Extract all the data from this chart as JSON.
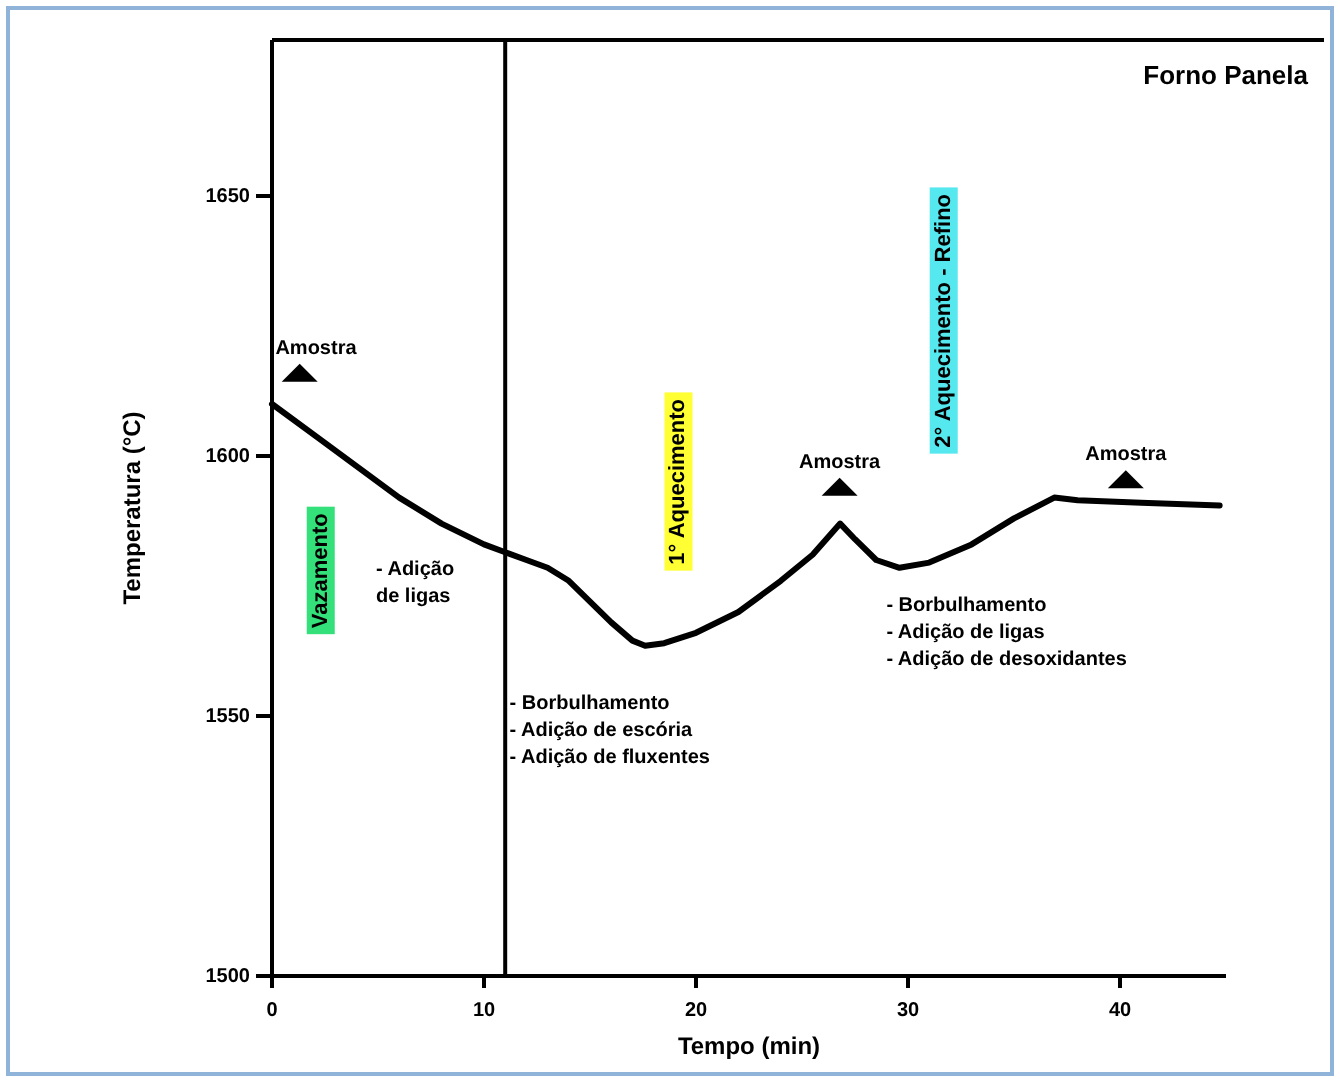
{
  "chart_data": {
    "type": "line",
    "title": "Forno Panela",
    "xlabel": "Tempo (min)",
    "ylabel": "Temperatura (°C)",
    "x": [
      0,
      2,
      4,
      6,
      8,
      10,
      11,
      12,
      13,
      14,
      15,
      16,
      17,
      17.6,
      18.5,
      20,
      22,
      24,
      25.5,
      26.8,
      27.5,
      28.5,
      29.6,
      31,
      33,
      35,
      36.9,
      38,
      41,
      44.7
    ],
    "series": [
      {
        "color": "#000000",
        "values": [
          1610,
          1604,
          1598,
          1592,
          1587,
          1583,
          1581.5,
          1580,
          1578.5,
          1576,
          1572,
          1568,
          1564.5,
          1563.5,
          1564,
          1566,
          1570,
          1576,
          1581,
          1587,
          1584,
          1580,
          1578.5,
          1579.5,
          1583,
          1588,
          1592,
          1591.5,
          1591,
          1590.5
        ]
      }
    ],
    "xlim": [
      0,
      45
    ],
    "xticks": [
      0,
      10,
      20,
      30,
      40
    ],
    "ylim": [
      1500,
      1680
    ],
    "yticks": [
      1500,
      1550,
      1600,
      1650
    ],
    "marker": "none",
    "line_style": "solid",
    "ref_lines": [
      {
        "axis": "x",
        "value": 11,
        "label": null,
        "color": "#000000"
      }
    ],
    "annotations": [
      "Amostra",
      "Amostra",
      "Amostra",
      "Vazamento",
      "1° Aquecimento",
      "2° Aquecimento - Refino",
      "- Adição\nde ligas",
      "- Borbulhamento\n- Adição de escória\n- Adição de fluxentes",
      "- Borbulhamento\n- Adição de ligas\n- Adição de desoxidantes"
    ]
  }
}
